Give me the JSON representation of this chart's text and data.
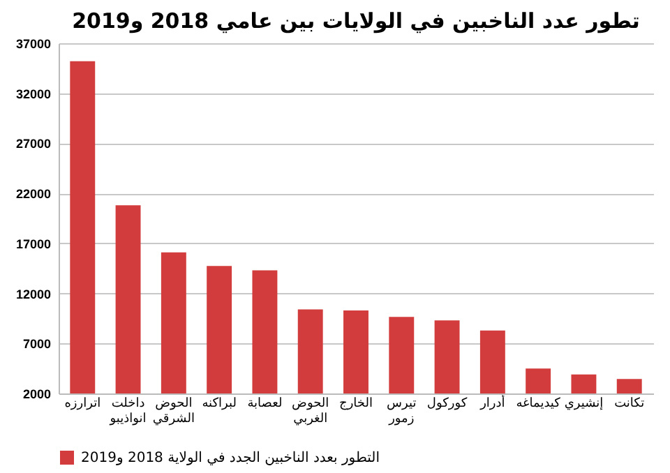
{
  "chart_data": {
    "type": "bar",
    "title": "تطور عدد الناخبين في الولايات بين عامي 2018 و2019",
    "categories": [
      "اترارزه",
      "داخلت انواذيبو",
      "الحوض الشرقي",
      "لبراكنه",
      "لعصابة",
      "الحوض الغربي",
      "الخارج",
      "تيرس زمور",
      "كوركول",
      "أدرار",
      "كيديماغه",
      "إنشيري",
      "تكانت"
    ],
    "series": [
      {
        "name": "التطور بعدد الناخبين الجدد في الولاية 2018 و2019",
        "color": "#d23c3c",
        "values": [
          35200,
          20800,
          16100,
          14750,
          14300,
          10400,
          10300,
          9650,
          9300,
          8300,
          4500,
          3900,
          3450
        ]
      }
    ],
    "ylim": [
      2000,
      37000
    ],
    "yticks": [
      2000,
      7000,
      12000,
      17000,
      22000,
      27000,
      32000,
      37000
    ],
    "grid": "y",
    "legend": "bottom"
  }
}
